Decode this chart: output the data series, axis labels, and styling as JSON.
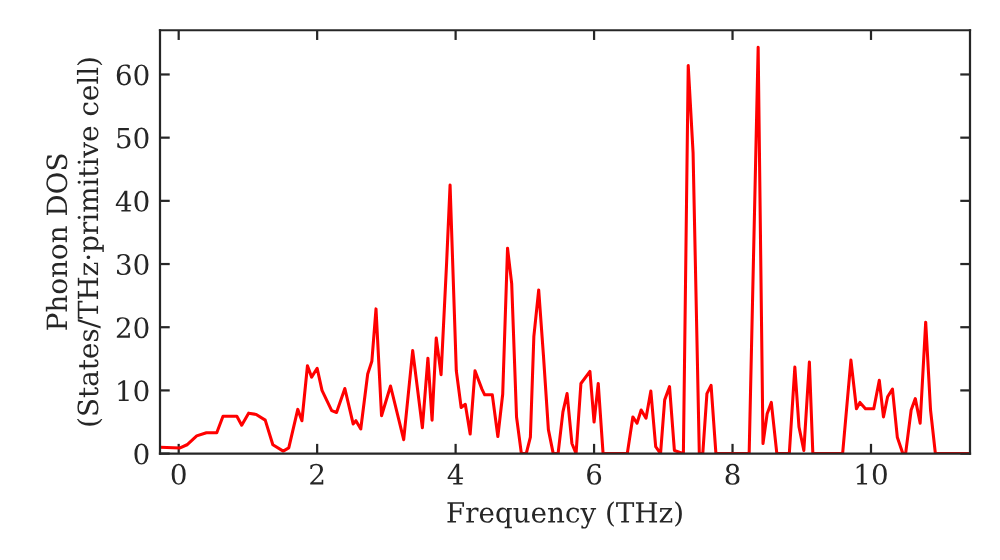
{
  "chart_data": {
    "type": "line",
    "xlabel": "Frequency (THz)",
    "ylabel": "Phonon DOS\n(States/THz·primitive cell)",
    "xlim": [
      -0.27,
      11.43
    ],
    "ylim": [
      0,
      67
    ],
    "xticks": [
      0,
      2,
      4,
      6,
      8,
      10
    ],
    "yticks": [
      0,
      10,
      20,
      30,
      40,
      50,
      60
    ],
    "grid": false,
    "marker": "none",
    "line_style": "solid",
    "series": [
      {
        "color": "#ff0000",
        "x": [
          -0.27,
          0.02,
          0.12,
          0.26,
          0.4,
          0.55,
          0.64,
          0.84,
          0.91,
          1.01,
          1.12,
          1.25,
          1.36,
          1.51,
          1.59,
          1.72,
          1.78,
          1.86,
          1.92,
          2.0,
          2.07,
          2.21,
          2.28,
          2.4,
          2.52,
          2.56,
          2.63,
          2.73,
          2.79,
          2.85,
          2.93,
          3.06,
          3.25,
          3.38,
          3.52,
          3.6,
          3.66,
          3.72,
          3.79,
          3.87,
          3.92,
          4.01,
          4.08,
          4.14,
          4.21,
          4.28,
          4.38,
          4.42,
          4.53,
          4.61,
          4.68,
          4.75,
          4.81,
          4.88,
          4.95,
          5.02,
          5.08,
          5.13,
          5.2,
          5.27,
          5.34,
          5.41,
          5.48,
          5.55,
          5.61,
          5.68,
          5.74,
          5.81,
          5.94,
          6.0,
          6.06,
          6.13,
          6.48,
          6.56,
          6.62,
          6.68,
          6.75,
          6.82,
          6.89,
          6.96,
          7.02,
          7.09,
          7.16,
          7.29,
          7.36,
          7.43,
          7.52,
          7.57,
          7.63,
          7.69,
          7.76,
          8.24,
          8.37,
          8.44,
          8.5,
          8.56,
          8.64,
          8.82,
          8.9,
          8.96,
          9.03,
          9.11,
          9.16,
          9.59,
          9.71,
          9.79,
          9.84,
          9.92,
          10.04,
          10.12,
          10.18,
          10.24,
          10.31,
          10.38,
          10.46,
          10.5,
          10.58,
          10.64,
          10.71,
          10.79,
          10.86,
          10.93,
          11.43
        ],
        "values": [
          1.0,
          0.9,
          1.4,
          2.8,
          3.3,
          3.3,
          5.9,
          5.9,
          4.5,
          6.4,
          6.2,
          5.3,
          1.4,
          0.4,
          0.9,
          7.0,
          5.2,
          13.9,
          12.1,
          13.5,
          10.0,
          6.8,
          6.5,
          10.3,
          4.7,
          5.2,
          3.9,
          12.6,
          14.6,
          22.9,
          6.0,
          10.7,
          2.2,
          16.3,
          4.1,
          15.1,
          5.3,
          18.3,
          12.5,
          30.2,
          42.5,
          13.1,
          7.3,
          7.8,
          3.1,
          13.1,
          10.2,
          9.3,
          9.3,
          2.7,
          9.4,
          32.5,
          26.9,
          5.8,
          0,
          0,
          2.6,
          18.5,
          25.9,
          15.3,
          3.8,
          0,
          0,
          6.6,
          9.5,
          1.6,
          0,
          11.1,
          13.0,
          5.0,
          11.1,
          0,
          0,
          5.8,
          4.8,
          6.9,
          5.6,
          9.9,
          1.1,
          0,
          8.5,
          10.6,
          0.5,
          0,
          61.4,
          47.6,
          0,
          0,
          9.5,
          10.8,
          0,
          0,
          64.3,
          1.6,
          6.3,
          8.1,
          0,
          0,
          13.7,
          4.2,
          0.5,
          14.5,
          0,
          0,
          14.8,
          7.1,
          8.1,
          7.1,
          7.1,
          11.6,
          5.8,
          9.0,
          10.2,
          2.6,
          0,
          0,
          6.9,
          8.7,
          4.8,
          20.8,
          6.9,
          0,
          0
        ]
      }
    ]
  }
}
